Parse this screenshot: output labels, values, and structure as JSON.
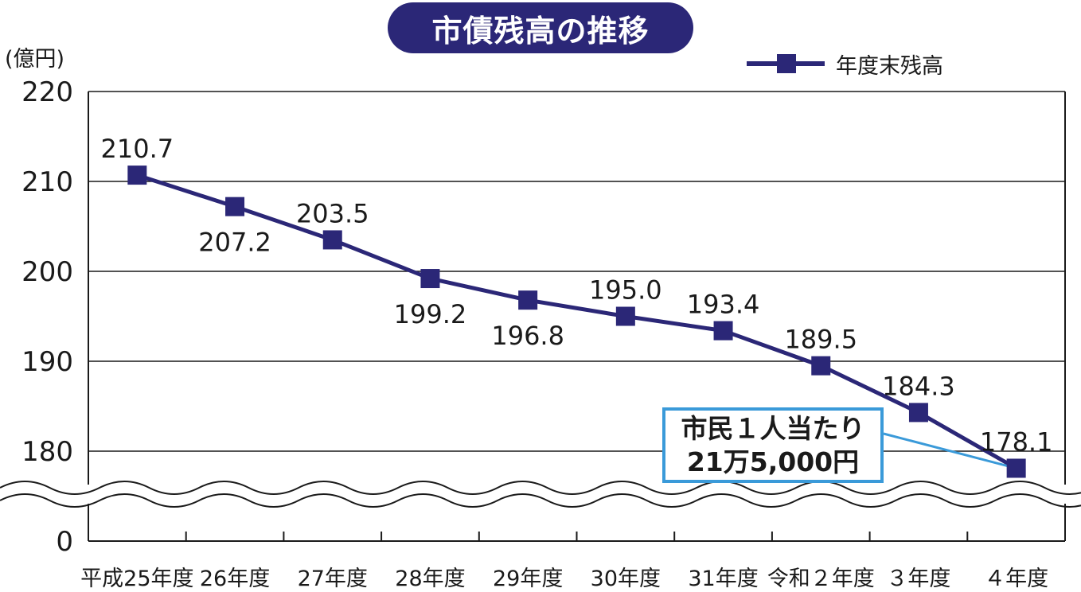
{
  "title": "市債残高の推移",
  "unit_label": "(億円)",
  "legend": {
    "label": "年度末残高"
  },
  "callout": {
    "line1": "市民１人当たり",
    "line2": "21万5,000円"
  },
  "colors": {
    "series": "#2b2777",
    "title_bg": "#2b2777",
    "callout_border": "#3a9ad9",
    "grid": "#1a1a1a"
  },
  "chart_data": {
    "type": "line",
    "title": "市債残高の推移",
    "ylabel": "(億円)",
    "xlabel": "",
    "categories": [
      "平成25年度",
      "26年度",
      "27年度",
      "28年度",
      "29年度",
      "30年度",
      "31年度",
      "令和２年度",
      "３年度",
      "４年度"
    ],
    "series": [
      {
        "name": "年度末残高",
        "values": [
          210.7,
          207.2,
          203.5,
          199.2,
          196.8,
          195.0,
          193.4,
          189.5,
          184.3,
          178.1
        ]
      }
    ],
    "data_labels": [
      "210.7",
      "207.2",
      "203.5",
      "199.2",
      "196.8",
      "195.0",
      "193.4",
      "189.5",
      "184.3",
      "178.1"
    ],
    "y_ticks": [
      "0",
      "180",
      "190",
      "200",
      "210",
      "220"
    ],
    "ylim": [
      0,
      220
    ],
    "axis_break": "between 0 and 180",
    "grid": true,
    "legend_position": "top-right"
  }
}
